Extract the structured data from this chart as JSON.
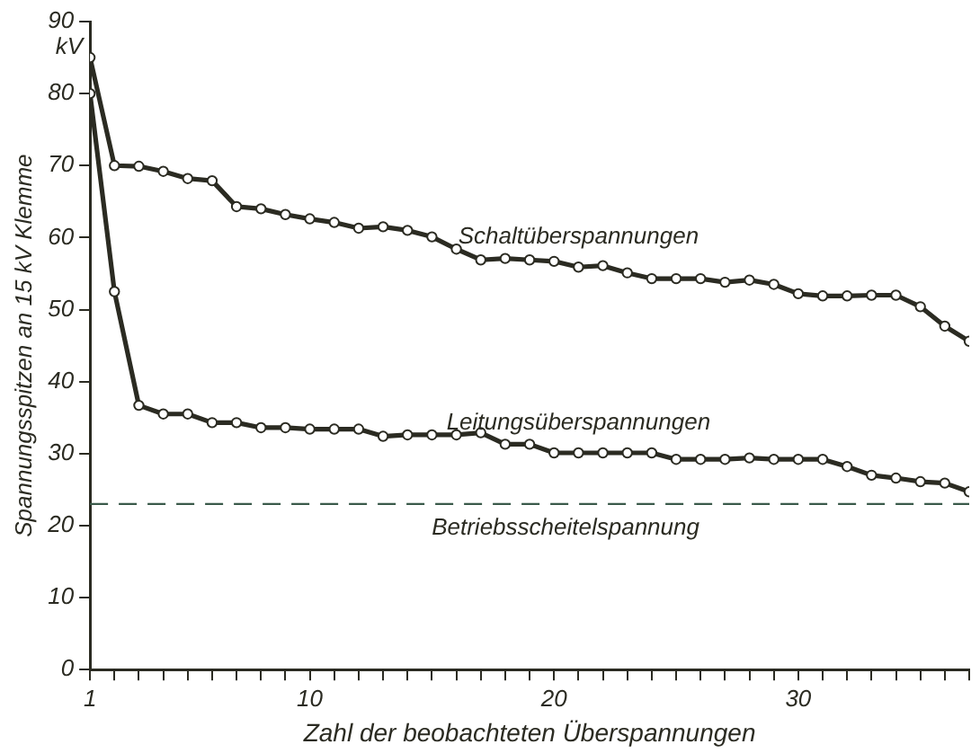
{
  "chart_data": {
    "type": "line",
    "xlabel": "Zahl der beobachteten Überspannungen",
    "ylabel": "Spannungsspitzen an 15 kV Klemme",
    "x": [
      1,
      2,
      3,
      4,
      5,
      6,
      7,
      8,
      9,
      10,
      11,
      12,
      13,
      14,
      15,
      16,
      17,
      18,
      19,
      20,
      21,
      22,
      23,
      24,
      25,
      26,
      27,
      28,
      29,
      30,
      31,
      32,
      33,
      34,
      35,
      36,
      37
    ],
    "series": [
      {
        "name": "Schaltüberspannungen",
        "color": "#2b2b22",
        "values": [
          85,
          70,
          69.9,
          69.2,
          68.2,
          67.9,
          64.3,
          64,
          63.2,
          62.6,
          62.1,
          61.3,
          61.5,
          61,
          60.1,
          58.4,
          56.9,
          57.1,
          56.9,
          56.7,
          55.9,
          56.1,
          55.1,
          54.3,
          54.3,
          54.3,
          53.8,
          54.1,
          53.5,
          52.2,
          51.9,
          51.9,
          52,
          52,
          50.4,
          47.7,
          45.6
        ]
      },
      {
        "name": "Leitungsüberspannungen",
        "color": "#2b2b22",
        "values": [
          80,
          52.5,
          36.7,
          35.5,
          35.5,
          34.3,
          34.3,
          33.6,
          33.6,
          33.4,
          33.4,
          33.4,
          32.4,
          32.6,
          32.6,
          32.6,
          32.9,
          31.3,
          31.3,
          30.1,
          30.1,
          30.1,
          30.1,
          30.1,
          29.2,
          29.2,
          29.2,
          29.4,
          29.2,
          29.2,
          29.2,
          28.2,
          27,
          26.6,
          26.1,
          25.9,
          24.7
        ]
      }
    ],
    "xlim": [
      1,
      37
    ],
    "xticks": [
      1,
      {
        "value": 2,
        "label": null
      },
      {
        "value": 3,
        "label": null
      },
      {
        "value": 4,
        "label": null
      },
      {
        "value": 5,
        "label": null
      },
      {
        "value": 6,
        "label": null
      },
      {
        "value": 7,
        "label": null
      },
      {
        "value": 8,
        "label": null
      },
      {
        "value": 9,
        "label": null
      },
      10,
      {
        "value": 11,
        "label": null
      },
      {
        "value": 12,
        "label": null
      },
      {
        "value": 13,
        "label": null
      },
      {
        "value": 14,
        "label": null
      },
      {
        "value": 15,
        "label": null
      },
      {
        "value": 16,
        "label": null
      },
      {
        "value": 17,
        "label": null
      },
      {
        "value": 18,
        "label": null
      },
      {
        "value": 19,
        "label": null
      },
      20,
      {
        "value": 21,
        "label": null
      },
      {
        "value": 22,
        "label": null
      },
      {
        "value": 23,
        "label": null
      },
      {
        "value": 24,
        "label": null
      },
      {
        "value": 25,
        "label": null
      },
      {
        "value": 26,
        "label": null
      },
      {
        "value": 27,
        "label": null
      },
      {
        "value": 28,
        "label": null
      },
      {
        "value": 29,
        "label": null
      },
      30,
      {
        "value": 31,
        "label": null
      },
      {
        "value": 32,
        "label": null
      },
      {
        "value": 33,
        "label": null
      },
      {
        "value": 34,
        "label": null
      },
      {
        "value": 35,
        "label": null
      },
      {
        "value": 36,
        "label": null
      },
      {
        "value": 37,
        "label": null
      }
    ],
    "ylim": [
      0,
      90
    ],
    "yticks": [
      0,
      10,
      20,
      30,
      40,
      50,
      60,
      70,
      80,
      90
    ],
    "ref_lines": [
      {
        "axis": "y",
        "value": 23,
        "label": "Betriebsscheitelspannung",
        "color": "#3a5a4a",
        "line_style": "dashed"
      }
    ],
    "annotations": [
      "kV"
    ],
    "marker": "circle",
    "line_style": "solid",
    "grid": false,
    "legend": false
  }
}
